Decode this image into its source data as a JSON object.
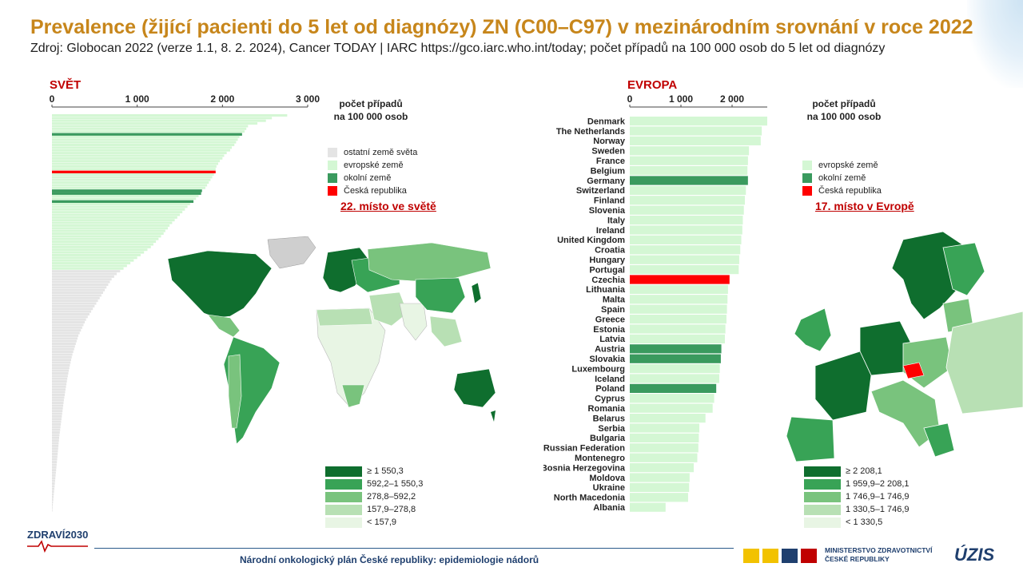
{
  "title": "Prevalence (žijící pacienti do 5 let od diagnózy) ZN (C00–C97) v mezinárodním srovnání v roce 2022",
  "subtitle": "Zdroj: Globocan 2022 (verze 1.1, 8. 2. 2024), Cancer TODAY | IARC https://gco.iarc.who.int/today; počet případů na 100 000 osob do 5 let od diagnózy",
  "world": {
    "heading": "SVĚT",
    "unit_line1": "počet případů",
    "unit_line2": "na 100 000 osob",
    "rank": "22. místo ve světě",
    "legend": [
      {
        "label": "ostatní země světa",
        "color": "#e4e4e4"
      },
      {
        "label": "evropské země",
        "color": "#d4f7d4"
      },
      {
        "label": "okolní země",
        "color": "#3a9a5e"
      },
      {
        "label": "Česká republika",
        "color": "#ff0000"
      }
    ],
    "scale": [
      {
        "label": "≥ 1 550,3",
        "color": "#0f6e2e"
      },
      {
        "label": "592,2–1 550,3",
        "color": "#38a356"
      },
      {
        "label": "278,8–592,2",
        "color": "#79c37d"
      },
      {
        "label": "157,9–278,8",
        "color": "#b8e0b4"
      },
      {
        "label": "< 157,9",
        "color": "#e8f5e4"
      }
    ]
  },
  "europe": {
    "heading": "EVROPA",
    "unit_line1": "počet případů",
    "unit_line2": "na 100 000 osob",
    "rank": "17. místo v Evropě",
    "legend": [
      {
        "label": "evropské země",
        "color": "#d4f7d4"
      },
      {
        "label": "okolní země",
        "color": "#3a9a5e"
      },
      {
        "label": "Česká republika",
        "color": "#ff0000"
      }
    ],
    "scale": [
      {
        "label": "≥ 2 208,1",
        "color": "#0f6e2e"
      },
      {
        "label": "1 959,9–2 208,1",
        "color": "#38a356"
      },
      {
        "label": "1 746,9–1 746,9",
        "color": "#79c37d"
      },
      {
        "label": "1 330,5–1 746,9",
        "color": "#b8e0b4"
      },
      {
        "label": "< 1 330,5",
        "color": "#e8f5e4"
      }
    ]
  },
  "footer": {
    "text": "Národní onkologický plán České republiky: epidemiologie nádorů",
    "logo_text": "ZDRAVÍ2030",
    "ministry_line1": "MINISTERSTVO ZDRAVOTNICTVÍ",
    "ministry_line2": "ČESKÉ REPUBLIKY",
    "uzis_text": "ÚZIS"
  },
  "colors": {
    "other": "#e4e4e4",
    "europe": "#d4f7d4",
    "neighbor": "#3a9a5e",
    "czech": "#ff0000"
  },
  "chart_data": [
    {
      "type": "bar",
      "orientation": "horizontal",
      "xlim": [
        0,
        3000
      ],
      "ticks": [
        "0",
        "1 000",
        "2 000",
        "3 000"
      ],
      "tick_values": [
        0,
        1000,
        2000,
        3000
      ],
      "note": "",
      "bars": [
        {
          "v": 2760,
          "c": "europe"
        },
        {
          "v": 2580,
          "c": "europe"
        },
        {
          "v": 2510,
          "c": "europe"
        },
        {
          "v": 2410,
          "c": "europe"
        },
        {
          "v": 2300,
          "c": "europe"
        },
        {
          "v": 2280,
          "c": "europe"
        },
        {
          "v": 2260,
          "c": "europe"
        },
        {
          "v": 2230,
          "c": "neighbor"
        },
        {
          "v": 2200,
          "c": "europe"
        },
        {
          "v": 2180,
          "c": "europe"
        },
        {
          "v": 2160,
          "c": "europe"
        },
        {
          "v": 2140,
          "c": "europe"
        },
        {
          "v": 2110,
          "c": "europe"
        },
        {
          "v": 2090,
          "c": "europe"
        },
        {
          "v": 2050,
          "c": "europe"
        },
        {
          "v": 2020,
          "c": "europe"
        },
        {
          "v": 2000,
          "c": "europe"
        },
        {
          "v": 1970,
          "c": "europe"
        },
        {
          "v": 1950,
          "c": "europe"
        },
        {
          "v": 1930,
          "c": "europe"
        },
        {
          "v": 1920,
          "c": "europe"
        },
        {
          "v": 1920,
          "c": "czech"
        },
        {
          "v": 1900,
          "c": "europe"
        },
        {
          "v": 1880,
          "c": "europe"
        },
        {
          "v": 1860,
          "c": "europe"
        },
        {
          "v": 1840,
          "c": "europe"
        },
        {
          "v": 1820,
          "c": "europe"
        },
        {
          "v": 1800,
          "c": "europe"
        },
        {
          "v": 1760,
          "c": "neighbor"
        },
        {
          "v": 1750,
          "c": "neighbor"
        },
        {
          "v": 1720,
          "c": "europe"
        },
        {
          "v": 1690,
          "c": "europe"
        },
        {
          "v": 1660,
          "c": "neighbor"
        },
        {
          "v": 1620,
          "c": "europe"
        },
        {
          "v": 1590,
          "c": "europe"
        },
        {
          "v": 1560,
          "c": "europe"
        },
        {
          "v": 1530,
          "c": "europe"
        },
        {
          "v": 1500,
          "c": "europe"
        },
        {
          "v": 1470,
          "c": "europe"
        },
        {
          "v": 1440,
          "c": "europe"
        },
        {
          "v": 1410,
          "c": "europe"
        },
        {
          "v": 1380,
          "c": "europe"
        },
        {
          "v": 1360,
          "c": "europe"
        },
        {
          "v": 1330,
          "c": "europe"
        },
        {
          "v": 1310,
          "c": "europe"
        },
        {
          "v": 1280,
          "c": "europe"
        },
        {
          "v": 1250,
          "c": "europe"
        },
        {
          "v": 1220,
          "c": "europe"
        },
        {
          "v": 1190,
          "c": "europe"
        },
        {
          "v": 1160,
          "c": "europe"
        },
        {
          "v": 1120,
          "c": "europe"
        },
        {
          "v": 1080,
          "c": "europe"
        },
        {
          "v": 1040,
          "c": "europe"
        },
        {
          "v": 1000,
          "c": "europe"
        },
        {
          "v": 960,
          "c": "europe"
        },
        {
          "v": 920,
          "c": "europe"
        },
        {
          "v": 880,
          "c": "europe"
        },
        {
          "v": 840,
          "c": "europe"
        },
        {
          "v": 800,
          "c": "other"
        },
        {
          "v": 760,
          "c": "other"
        },
        {
          "v": 730,
          "c": "other"
        },
        {
          "v": 700,
          "c": "other"
        },
        {
          "v": 680,
          "c": "other"
        },
        {
          "v": 660,
          "c": "other"
        },
        {
          "v": 640,
          "c": "other"
        },
        {
          "v": 620,
          "c": "other"
        },
        {
          "v": 600,
          "c": "other"
        },
        {
          "v": 580,
          "c": "other"
        },
        {
          "v": 560,
          "c": "other"
        },
        {
          "v": 540,
          "c": "other"
        },
        {
          "v": 520,
          "c": "other"
        },
        {
          "v": 500,
          "c": "other"
        },
        {
          "v": 480,
          "c": "other"
        },
        {
          "v": 460,
          "c": "other"
        },
        {
          "v": 440,
          "c": "other"
        },
        {
          "v": 420,
          "c": "other"
        },
        {
          "v": 400,
          "c": "other"
        },
        {
          "v": 385,
          "c": "other"
        },
        {
          "v": 370,
          "c": "other"
        },
        {
          "v": 355,
          "c": "other"
        },
        {
          "v": 340,
          "c": "other"
        },
        {
          "v": 325,
          "c": "other"
        },
        {
          "v": 310,
          "c": "other"
        },
        {
          "v": 300,
          "c": "other"
        },
        {
          "v": 290,
          "c": "other"
        },
        {
          "v": 280,
          "c": "other"
        },
        {
          "v": 270,
          "c": "other"
        },
        {
          "v": 260,
          "c": "other"
        },
        {
          "v": 250,
          "c": "other"
        },
        {
          "v": 240,
          "c": "other"
        },
        {
          "v": 232,
          "c": "other"
        },
        {
          "v": 225,
          "c": "other"
        },
        {
          "v": 218,
          "c": "other"
        },
        {
          "v": 211,
          "c": "other"
        },
        {
          "v": 204,
          "c": "other"
        },
        {
          "v": 198,
          "c": "other"
        },
        {
          "v": 192,
          "c": "other"
        },
        {
          "v": 186,
          "c": "other"
        },
        {
          "v": 180,
          "c": "other"
        },
        {
          "v": 175,
          "c": "other"
        },
        {
          "v": 170,
          "c": "other"
        },
        {
          "v": 165,
          "c": "other"
        },
        {
          "v": 160,
          "c": "other"
        },
        {
          "v": 155,
          "c": "other"
        },
        {
          "v": 150,
          "c": "other"
        },
        {
          "v": 145,
          "c": "other"
        },
        {
          "v": 140,
          "c": "other"
        },
        {
          "v": 136,
          "c": "other"
        },
        {
          "v": 132,
          "c": "other"
        },
        {
          "v": 128,
          "c": "other"
        },
        {
          "v": 124,
          "c": "other"
        },
        {
          "v": 120,
          "c": "other"
        },
        {
          "v": 116,
          "c": "other"
        },
        {
          "v": 112,
          "c": "other"
        },
        {
          "v": 108,
          "c": "other"
        },
        {
          "v": 104,
          "c": "other"
        },
        {
          "v": 100,
          "c": "other"
        },
        {
          "v": 96,
          "c": "other"
        },
        {
          "v": 92,
          "c": "other"
        },
        {
          "v": 88,
          "c": "other"
        },
        {
          "v": 85,
          "c": "other"
        },
        {
          "v": 82,
          "c": "other"
        },
        {
          "v": 79,
          "c": "other"
        },
        {
          "v": 76,
          "c": "other"
        },
        {
          "v": 73,
          "c": "other"
        },
        {
          "v": 70,
          "c": "other"
        },
        {
          "v": 67,
          "c": "other"
        },
        {
          "v": 64,
          "c": "other"
        },
        {
          "v": 61,
          "c": "other"
        },
        {
          "v": 58,
          "c": "other"
        },
        {
          "v": 55,
          "c": "other"
        },
        {
          "v": 52,
          "c": "other"
        },
        {
          "v": 49,
          "c": "other"
        },
        {
          "v": 46,
          "c": "other"
        },
        {
          "v": 43,
          "c": "other"
        },
        {
          "v": 40,
          "c": "other"
        },
        {
          "v": 37,
          "c": "other"
        },
        {
          "v": 34,
          "c": "other"
        },
        {
          "v": 31,
          "c": "other"
        },
        {
          "v": 28,
          "c": "other"
        },
        {
          "v": 25,
          "c": "other"
        },
        {
          "v": 22,
          "c": "other"
        },
        {
          "v": 19,
          "c": "other"
        },
        {
          "v": 16,
          "c": "other"
        },
        {
          "v": 13,
          "c": "other"
        },
        {
          "v": 10,
          "c": "other"
        },
        {
          "v": 8,
          "c": "other"
        },
        {
          "v": 6,
          "c": "other"
        }
      ]
    },
    {
      "type": "bar",
      "orientation": "horizontal",
      "xlim": [
        0,
        3000
      ],
      "ticks": [
        "0",
        "1 000",
        "2 000",
        "3 000"
      ],
      "tick_values": [
        0,
        1000,
        2000,
        3000
      ],
      "categories": [
        "Denmark",
        "The Netherlands",
        "Norway",
        "Sweden",
        "France",
        "Belgium",
        "Germany",
        "Switzerland",
        "Finland",
        "Slovenia",
        "Italy",
        "Ireland",
        "United Kingdom",
        "Croatia",
        "Hungary",
        "Portugal",
        "Czechia",
        "Lithuania",
        "Malta",
        "Spain",
        "Greece",
        "Estonia",
        "Latvia",
        "Austria",
        "Slovakia",
        "Luxembourg",
        "Iceland",
        "Poland",
        "Cyprus",
        "Romania",
        "Belarus",
        "Serbia",
        "Bulgaria",
        "Russian Federation",
        "Montenegro",
        "Bosnia Herzegovina",
        "Moldova",
        "Ukraine",
        "North Macedonia",
        "Albania"
      ],
      "values": [
        2760,
        2580,
        2560,
        2330,
        2310,
        2300,
        2310,
        2270,
        2250,
        2230,
        2210,
        2200,
        2180,
        2160,
        2140,
        2130,
        1950,
        1920,
        1910,
        1900,
        1890,
        1870,
        1860,
        1790,
        1780,
        1760,
        1750,
        1690,
        1650,
        1620,
        1480,
        1360,
        1350,
        1340,
        1320,
        1250,
        1170,
        1160,
        1140,
        700
      ],
      "groups": [
        "europe",
        "europe",
        "europe",
        "europe",
        "europe",
        "europe",
        "neighbor",
        "europe",
        "europe",
        "europe",
        "europe",
        "europe",
        "europe",
        "europe",
        "europe",
        "europe",
        "czech",
        "europe",
        "europe",
        "europe",
        "europe",
        "europe",
        "europe",
        "neighbor",
        "neighbor",
        "europe",
        "europe",
        "neighbor",
        "europe",
        "europe",
        "europe",
        "europe",
        "europe",
        "europe",
        "europe",
        "europe",
        "europe",
        "europe",
        "europe",
        "europe"
      ]
    }
  ]
}
